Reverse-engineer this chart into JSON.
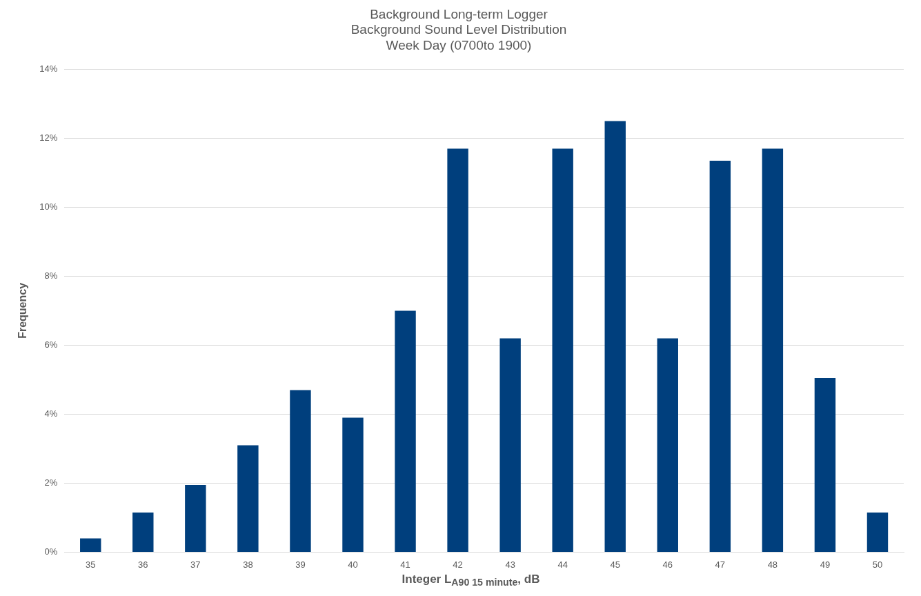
{
  "chart_data": {
    "type": "bar",
    "title": "Background Long-term Logger\nBackground Sound Level Distribution\nWeek Day (0700to 1900)",
    "xlabel": "Integer L$_{A90 15 minute}$, dB",
    "ylabel": "Frequency",
    "categories": [
      "35",
      "36",
      "37",
      "38",
      "39",
      "40",
      "41",
      "42",
      "43",
      "44",
      "45",
      "46",
      "47",
      "48",
      "49",
      "50"
    ],
    "values": [
      0.4,
      1.15,
      1.95,
      3.1,
      4.7,
      3.9,
      7.0,
      11.7,
      6.2,
      11.7,
      12.5,
      6.2,
      11.35,
      11.7,
      5.05,
      1.15
    ],
    "color": "#003f7d",
    "ylim": [
      0,
      14
    ],
    "yticks": [
      {
        "value": 0,
        "label": "0%"
      },
      {
        "value": 2,
        "label": "2%"
      },
      {
        "value": 4,
        "label": "4%"
      },
      {
        "value": 6,
        "label": "6%"
      },
      {
        "value": 8,
        "label": "8%"
      },
      {
        "value": 10,
        "label": "10%"
      },
      {
        "value": 12,
        "label": "12%"
      },
      {
        "value": 14,
        "label": "14%"
      }
    ],
    "grid": "y",
    "legend": false
  }
}
